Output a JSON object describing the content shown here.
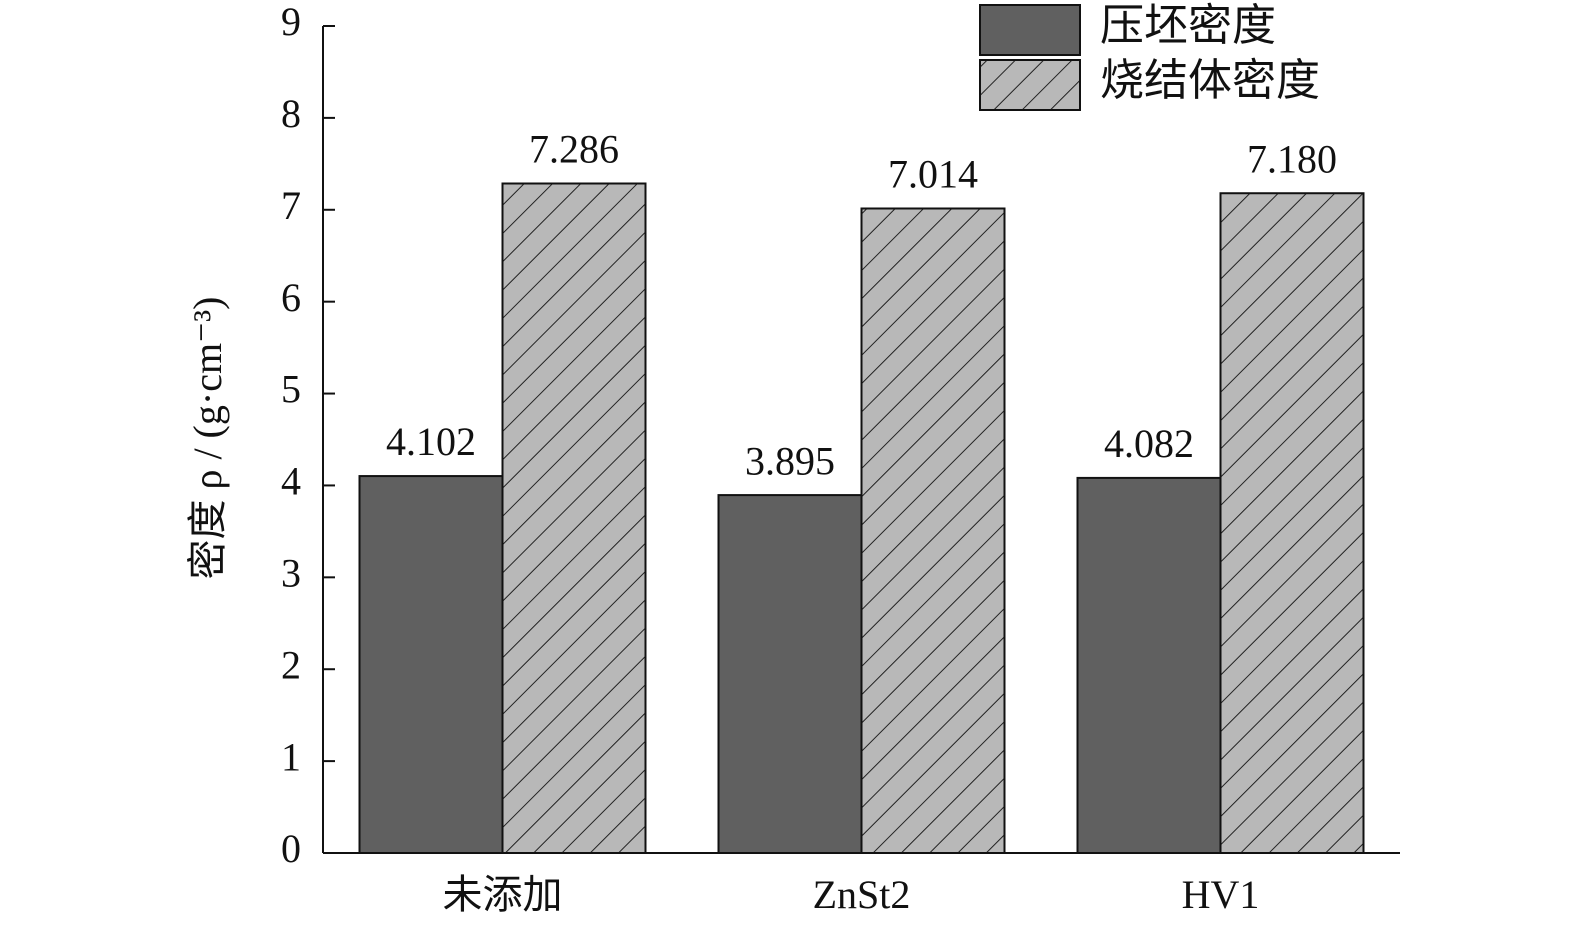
{
  "chart_data": {
    "type": "bar",
    "y_label": "密度 ρ / (g·cm⁻³)",
    "categories": [
      "未添加",
      "ZnSt2",
      "HV1"
    ],
    "series": [
      {
        "name": "压坯密度",
        "color": "#606060",
        "hatch": false,
        "values": [
          4.102,
          3.895,
          4.082
        ],
        "value_labels": [
          "4.102",
          "3.895",
          "4.082"
        ]
      },
      {
        "name": "烧结体密度",
        "color": "#b8b8b8",
        "hatch": true,
        "values": [
          7.286,
          7.014,
          7.18
        ],
        "value_labels": [
          "7.286",
          "7.014",
          "7.180"
        ]
      }
    ],
    "ylim": [
      0,
      9
    ],
    "yticks": [
      0,
      1,
      2,
      3,
      4,
      5,
      6,
      7,
      8,
      9
    ],
    "grid": false,
    "legend": "top-right"
  }
}
